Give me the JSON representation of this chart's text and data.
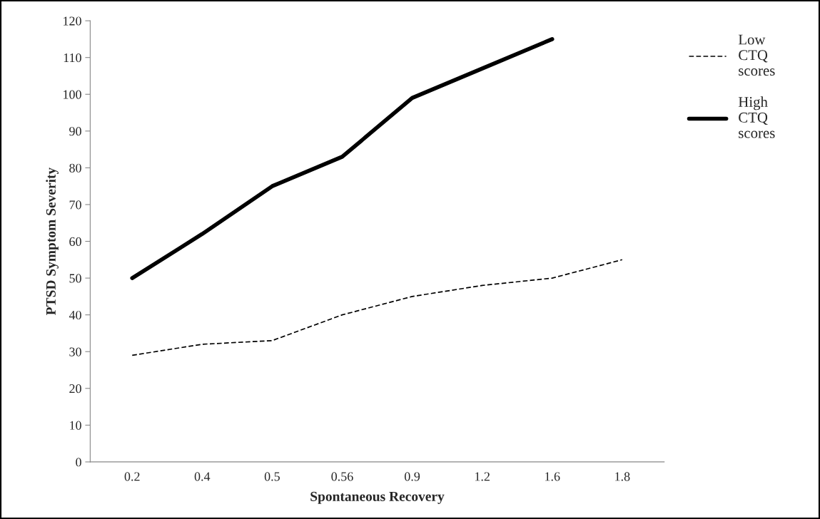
{
  "chart_data": {
    "type": "line",
    "xlabel": "Spontaneous Recovery",
    "ylabel": "PTSD Symptom Severity",
    "categories": [
      "0.2",
      "0.4",
      "0.5",
      "0.56",
      "0.9",
      "1.2",
      "1.6",
      "1.8"
    ],
    "series": [
      {
        "name": "Low CTQ scores",
        "color": "#000000",
        "line_style": "dashed",
        "values": [
          29,
          32,
          33,
          40,
          45,
          48,
          50,
          55
        ]
      },
      {
        "name": "High CTQ scores",
        "color": "#000000",
        "line_style": "solid",
        "values": [
          50,
          62,
          75,
          83,
          99,
          107,
          115,
          null
        ]
      }
    ],
    "ylim": [
      0,
      120
    ],
    "yticks": [
      0,
      10,
      20,
      30,
      40,
      50,
      60,
      70,
      80,
      90,
      100,
      110,
      120
    ],
    "grid": false,
    "legend": "top right",
    "marker": "none"
  }
}
